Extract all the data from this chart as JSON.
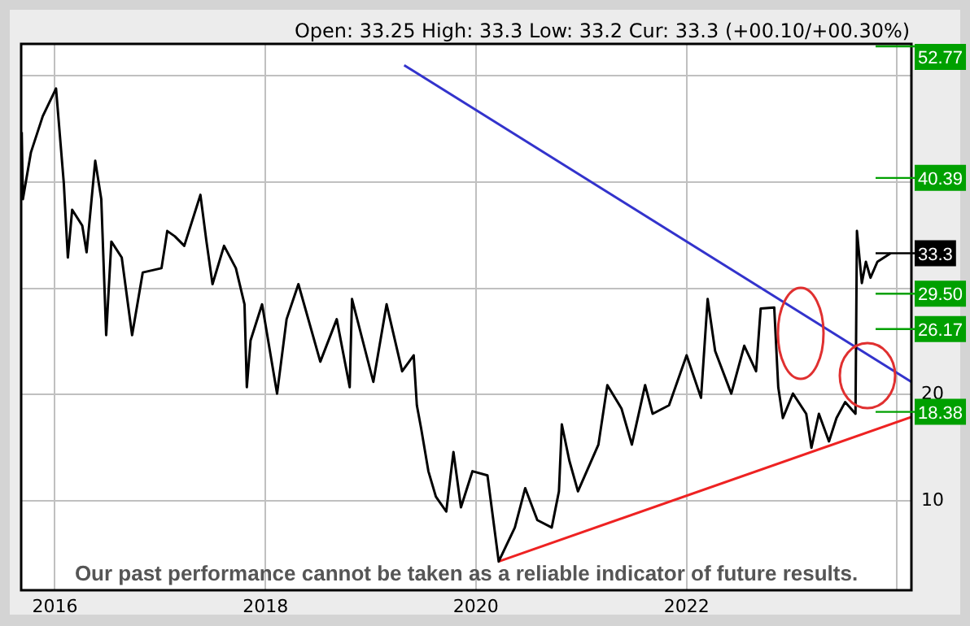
{
  "chart_data": {
    "type": "line",
    "subtitle": "Open: 33.25 High: 33.3 Low: 33.2 Cur: 33.3 (+00.10/+00.30%)",
    "series": [
      {
        "color": "#000000",
        "x": [
          "2015-09-08",
          "2015-09-12",
          "2015-10-10",
          "2015-11-20",
          "2016-01-05",
          "2016-02-01",
          "2016-02-15",
          "2016-03-01",
          "2016-04-05",
          "2016-04-20",
          "2016-05-20",
          "2016-06-10",
          "2016-06-27",
          "2016-07-15",
          "2016-08-20",
          "2016-09-25",
          "2016-11-01",
          "2017-01-05",
          "2017-01-25",
          "2017-02-20",
          "2017-03-25",
          "2017-05-20",
          "2017-06-10",
          "2017-07-01",
          "2017-08-10",
          "2017-09-20",
          "2017-10-20",
          "2017-10-28",
          "2017-11-10",
          "2017-12-20",
          "2018-02-10",
          "2018-03-15",
          "2018-04-25",
          "2018-07-10",
          "2018-09-05",
          "2018-10-20",
          "2018-10-28",
          "2019-01-10",
          "2019-02-25",
          "2019-04-20",
          "2019-05-30",
          "2019-06-10",
          "2019-06-25",
          "2019-07-20",
          "2019-08-15",
          "2019-09-20",
          "2019-10-15",
          "2019-11-10",
          "2019-12-20",
          "2020-02-10",
          "2020-03-20",
          "2020-05-15",
          "2020-06-20",
          "2020-08-01",
          "2020-09-20",
          "2020-10-15",
          "2020-10-25",
          "2020-11-20",
          "2020-12-20",
          "2021-03-01",
          "2021-04-01",
          "2021-05-20",
          "2021-06-25",
          "2021-08-10",
          "2021-09-05",
          "2021-11-01",
          "2022-01-01",
          "2022-02-20",
          "2022-03-15",
          "2022-04-10",
          "2022-06-05",
          "2022-07-20",
          "2022-08-30",
          "2022-09-15",
          "2022-11-01",
          "2022-11-15",
          "2022-12-01",
          "2023-01-05",
          "2023-02-20",
          "2023-03-10",
          "2023-04-05",
          "2023-05-10",
          "2023-06-05",
          "2023-07-05",
          "2023-08-10",
          "2023-08-15",
          "2023-09-01",
          "2023-09-15",
          "2023-10-01",
          "2023-10-25",
          "2023-12-10"
        ],
        "values": [
          44.7,
          38.4,
          42.8,
          46.2,
          48.8,
          39.9,
          32.9,
          37.4,
          35.9,
          33.4,
          42.0,
          38.4,
          25.6,
          34.4,
          32.9,
          25.6,
          31.5,
          31.9,
          35.4,
          34.9,
          34.0,
          38.8,
          34.4,
          30.4,
          34.0,
          31.9,
          28.5,
          20.7,
          25.1,
          28.5,
          20.1,
          27.1,
          30.4,
          23.1,
          27.1,
          20.7,
          29.0,
          21.2,
          28.5,
          22.2,
          23.7,
          19.0,
          16.8,
          12.8,
          10.4,
          9.0,
          14.6,
          9.4,
          12.8,
          12.4,
          4.3,
          7.5,
          11.2,
          8.2,
          7.5,
          10.9,
          17.2,
          13.8,
          10.9,
          15.3,
          20.9,
          18.7,
          15.3,
          20.9,
          18.2,
          19.0,
          23.7,
          19.7,
          29.0,
          24.1,
          20.1,
          24.6,
          22.2,
          28.1,
          28.2,
          20.7,
          17.8,
          20.1,
          18.2,
          15.0,
          18.2,
          15.6,
          17.8,
          19.3,
          18.2,
          35.4,
          30.5,
          32.5,
          31.0,
          32.5,
          33.3
        ]
      },
      {
        "color": "#3333cc",
        "x": [
          "2019-04-27",
          "2024-02-20"
        ],
        "values": [
          51.0,
          21.2
        ]
      },
      {
        "color": "#ee2222",
        "x": [
          "2020-03-20",
          "2024-02-20"
        ],
        "values": [
          4.3,
          17.9
        ]
      }
    ],
    "xlim": [
      "2015-09-06",
      "2024-02-20"
    ],
    "xticks": [
      {
        "value": "2016",
        "label": "2016"
      },
      {
        "value": "2018",
        "label": "2018"
      },
      {
        "value": "2020",
        "label": "2020"
      },
      {
        "value": "2022",
        "label": "2022"
      },
      {
        "value": "2024",
        "label": null
      }
    ],
    "ylim": [
      1.6,
      53
    ],
    "yticks": [
      10,
      20,
      {
        "value": 30,
        "label": null
      },
      {
        "value": 40,
        "label": null
      },
      {
        "value": 50,
        "label": null
      }
    ],
    "ref_lines": [
      {
        "axis": "y",
        "value": 52.77,
        "label": "52.77",
        "color": "#00a000"
      },
      {
        "axis": "y",
        "value": 40.39,
        "label": "40.39",
        "color": "#00a000"
      },
      {
        "axis": "y",
        "value": 33.3,
        "label": "33.3",
        "color": "#000000"
      },
      {
        "axis": "y",
        "value": 29.5,
        "label": "29.50",
        "color": "#00a000"
      },
      {
        "axis": "y",
        "value": 26.17,
        "label": "26.17",
        "color": "#00a000"
      },
      {
        "axis": "y",
        "value": 18.38,
        "label": "18.38",
        "color": "#00a000"
      }
    ],
    "annotations": [
      "Our past performance cannot be taken as a reliable indicator of future results."
    ],
    "grid": true,
    "marker": "none",
    "line_style": "solid"
  }
}
